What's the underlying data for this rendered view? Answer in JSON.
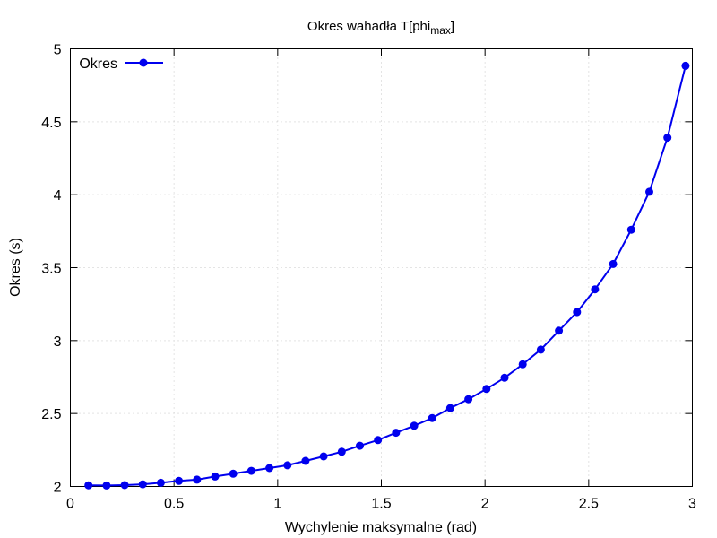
{
  "chart_data": {
    "type": "line",
    "title": {
      "main": "Okres wahadła T[phi",
      "subscript": "max",
      "suffix": "]"
    },
    "xlabel": "Wychylenie maksymalne (rad)",
    "ylabel": "Okres (s)",
    "xlim": [
      0,
      3
    ],
    "ylim": [
      2,
      5
    ],
    "x_ticks": [
      "0",
      "0.5",
      "1",
      "1.5",
      "2",
      "2.5",
      "3"
    ],
    "y_ticks": [
      "2",
      "2.5",
      "3",
      "3.5",
      "4",
      "4.5",
      "5"
    ],
    "grid": true,
    "legend_position": "top-left",
    "series": [
      {
        "name": "Okres",
        "color": "#0000ee",
        "marker": "circle",
        "x": [
          0.0873,
          0.1745,
          0.2618,
          0.3491,
          0.4363,
          0.5236,
          0.6109,
          0.6981,
          0.7854,
          0.8727,
          0.9599,
          1.0472,
          1.1345,
          1.2217,
          1.309,
          1.3963,
          1.4835,
          1.5708,
          1.6581,
          1.7453,
          1.8326,
          1.9199,
          2.0071,
          2.0944,
          2.1817,
          2.2689,
          2.3562,
          2.4435,
          2.5307,
          2.618,
          2.7053,
          2.7925,
          2.8798,
          2.967
        ],
        "y": [
          2.008,
          2.007,
          2.009,
          2.015,
          2.025,
          2.038,
          2.047,
          2.068,
          2.087,
          2.107,
          2.126,
          2.145,
          2.175,
          2.206,
          2.238,
          2.279,
          2.318,
          2.368,
          2.416,
          2.469,
          2.537,
          2.598,
          2.668,
          2.745,
          2.837,
          2.938,
          3.068,
          3.195,
          3.351,
          3.525,
          3.76,
          4.02,
          4.391,
          4.884
        ]
      }
    ]
  }
}
